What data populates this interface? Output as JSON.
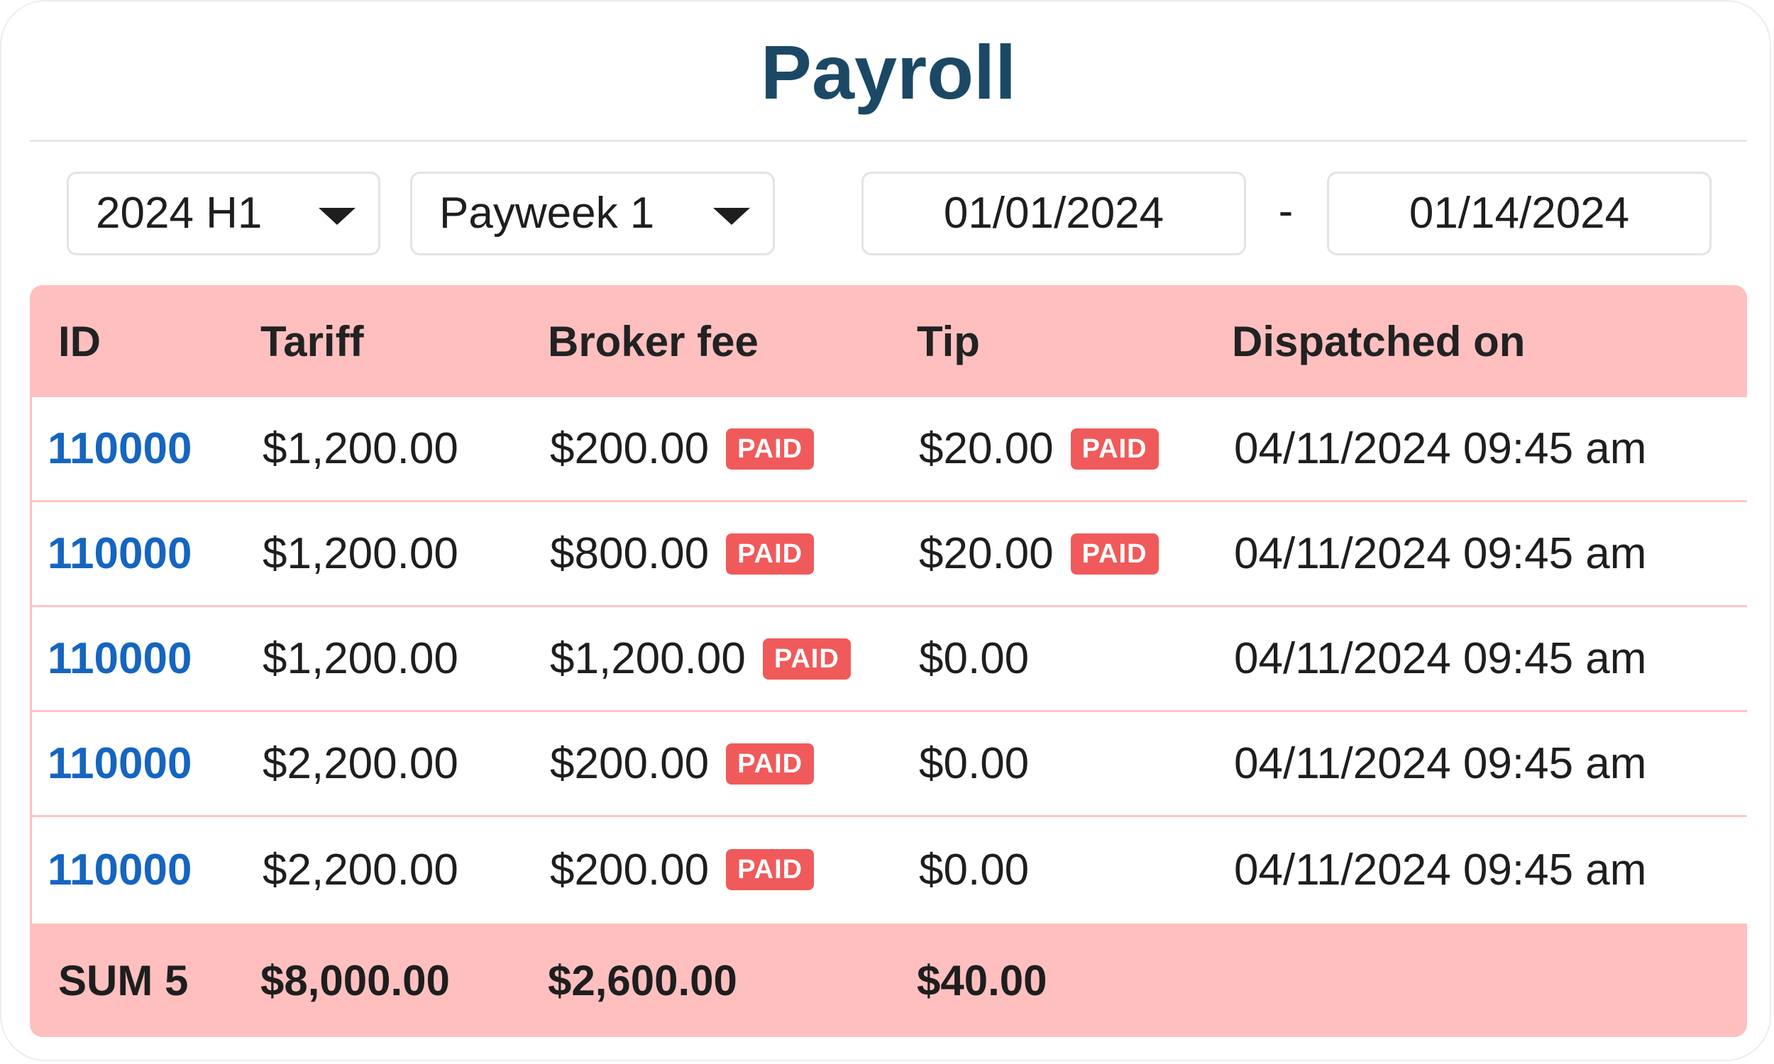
{
  "title": "Payroll",
  "filters": {
    "period": "2024 H1",
    "payweek": "Payweek 1",
    "date_from": "01/01/2024",
    "separator": "-",
    "date_to": "01/14/2024"
  },
  "table": {
    "headers": {
      "id": "ID",
      "tariff": "Tariff",
      "broker_fee": "Broker fee",
      "tip": "Tip",
      "dispatched_on": "Dispatched on"
    },
    "rows": [
      {
        "id": "110000",
        "tariff": "$1,200.00",
        "broker_fee": "$200.00",
        "broker_badge": "PAID",
        "tip": "$20.00",
        "tip_badge": "PAID",
        "dispatched_on": "04/11/2024 09:45 am"
      },
      {
        "id": "110000",
        "tariff": "$1,200.00",
        "broker_fee": "$800.00",
        "broker_badge": "PAID",
        "tip": "$20.00",
        "tip_badge": "PAID",
        "dispatched_on": "04/11/2024 09:45 am"
      },
      {
        "id": "110000",
        "tariff": "$1,200.00",
        "broker_fee": "$1,200.00",
        "broker_badge": "PAID",
        "tip": "$0.00",
        "tip_badge": "",
        "dispatched_on": "04/11/2024 09:45 am"
      },
      {
        "id": "110000",
        "tariff": "$2,200.00",
        "broker_fee": "$200.00",
        "broker_badge": "PAID",
        "tip": "$0.00",
        "tip_badge": "",
        "dispatched_on": "04/11/2024 09:45 am"
      },
      {
        "id": "110000",
        "tariff": "$2,200.00",
        "broker_fee": "$200.00",
        "broker_badge": "PAID",
        "tip": "$0.00",
        "tip_badge": "",
        "dispatched_on": "04/11/2024 09:45 am"
      }
    ],
    "footer": {
      "label": "SUM 5",
      "tariff": "$8,000.00",
      "broker_fee": "$2,600.00",
      "tip": "$40.00"
    }
  },
  "colors": {
    "title": "#1b4965",
    "header_bg": "#ffbfbf",
    "badge": "#f05a5a",
    "id_link": "#1565c0"
  }
}
